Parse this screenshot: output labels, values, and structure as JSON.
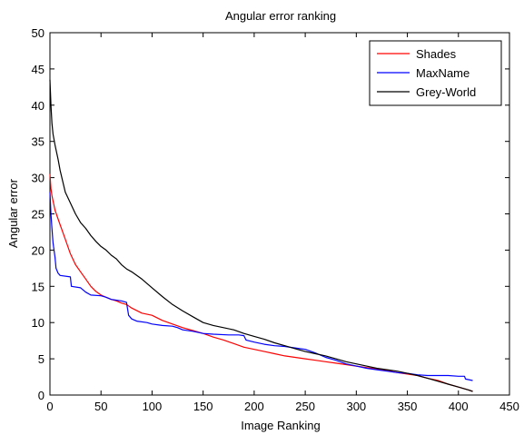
{
  "chart_data": {
    "type": "line",
    "title": "Angular error ranking",
    "xlabel": "Image Ranking",
    "ylabel": "Angular error",
    "xlim": [
      0,
      450
    ],
    "ylim": [
      0,
      50
    ],
    "xticks": [
      0,
      50,
      100,
      150,
      200,
      250,
      300,
      350,
      400,
      450
    ],
    "yticks": [
      0,
      5,
      10,
      15,
      20,
      25,
      30,
      35,
      40,
      45,
      50
    ],
    "grid": false,
    "legend": "top-right",
    "series": [
      {
        "name": "Shades",
        "color": "#ff0000",
        "points": [
          [
            0,
            30.5
          ],
          [
            1,
            28.5
          ],
          [
            2,
            27.5
          ],
          [
            5,
            25.5
          ],
          [
            10,
            23.5
          ],
          [
            15,
            21.5
          ],
          [
            20,
            19.5
          ],
          [
            25,
            18
          ],
          [
            30,
            17
          ],
          [
            35,
            16
          ],
          [
            40,
            15
          ],
          [
            45,
            14.3
          ],
          [
            50,
            13.8
          ],
          [
            55,
            13.5
          ],
          [
            60,
            13.2
          ],
          [
            65,
            13
          ],
          [
            70,
            12.7
          ],
          [
            75,
            12.5
          ],
          [
            80,
            12
          ],
          [
            90,
            11.3
          ],
          [
            100,
            11
          ],
          [
            110,
            10.3
          ],
          [
            120,
            9.8
          ],
          [
            130,
            9.3
          ],
          [
            140,
            8.9
          ],
          [
            150,
            8.5
          ],
          [
            160,
            8
          ],
          [
            170,
            7.6
          ],
          [
            180,
            7.1
          ],
          [
            190,
            6.6
          ],
          [
            200,
            6.3
          ],
          [
            210,
            6
          ],
          [
            220,
            5.7
          ],
          [
            230,
            5.4
          ],
          [
            240,
            5.2
          ],
          [
            250,
            5
          ],
          [
            260,
            4.8
          ],
          [
            270,
            4.6
          ],
          [
            280,
            4.4
          ],
          [
            290,
            4.2
          ],
          [
            300,
            4
          ],
          [
            310,
            3.8
          ],
          [
            320,
            3.6
          ],
          [
            330,
            3.4
          ],
          [
            340,
            3.1
          ],
          [
            350,
            2.9
          ],
          [
            360,
            2.7
          ],
          [
            370,
            2.3
          ],
          [
            380,
            2
          ],
          [
            390,
            1.5
          ],
          [
            400,
            1.1
          ],
          [
            405,
            0.9
          ],
          [
            410,
            0.7
          ],
          [
            414,
            0.5
          ]
        ]
      },
      {
        "name": "MaxName",
        "color": "#0000ff",
        "points": [
          [
            0,
            28
          ],
          [
            1,
            25
          ],
          [
            2,
            23
          ],
          [
            3,
            21
          ],
          [
            4,
            20
          ],
          [
            5,
            19
          ],
          [
            6,
            17.5
          ],
          [
            8,
            16.8
          ],
          [
            10,
            16.5
          ],
          [
            20,
            16.3
          ],
          [
            21,
            15
          ],
          [
            30,
            14.8
          ],
          [
            35,
            14.2
          ],
          [
            40,
            13.8
          ],
          [
            50,
            13.7
          ],
          [
            55,
            13.5
          ],
          [
            60,
            13.2
          ],
          [
            70,
            13
          ],
          [
            75,
            12.8
          ],
          [
            77,
            11
          ],
          [
            80,
            10.5
          ],
          [
            85,
            10.2
          ],
          [
            95,
            10
          ],
          [
            100,
            9.8
          ],
          [
            110,
            9.6
          ],
          [
            120,
            9.5
          ],
          [
            125,
            9.3
          ],
          [
            130,
            9
          ],
          [
            140,
            8.8
          ],
          [
            150,
            8.5
          ],
          [
            160,
            8.4
          ],
          [
            175,
            8.3
          ],
          [
            185,
            8.3
          ],
          [
            190,
            8.2
          ],
          [
            192,
            7.6
          ],
          [
            200,
            7.3
          ],
          [
            210,
            7
          ],
          [
            220,
            6.8
          ],
          [
            230,
            6.7
          ],
          [
            240,
            6.5
          ],
          [
            250,
            6.3
          ],
          [
            260,
            5.8
          ],
          [
            270,
            5.2
          ],
          [
            280,
            4.8
          ],
          [
            290,
            4.3
          ],
          [
            300,
            4
          ],
          [
            310,
            3.7
          ],
          [
            320,
            3.5
          ],
          [
            330,
            3.3
          ],
          [
            340,
            3.1
          ],
          [
            350,
            3
          ],
          [
            360,
            2.8
          ],
          [
            370,
            2.7
          ],
          [
            380,
            2.7
          ],
          [
            390,
            2.7
          ],
          [
            400,
            2.6
          ],
          [
            406,
            2.6
          ],
          [
            407,
            2.2
          ],
          [
            414,
            2
          ]
        ]
      },
      {
        "name": "Grey-World",
        "color": "#000000",
        "points": [
          [
            0,
            43.5
          ],
          [
            1,
            40
          ],
          [
            2,
            37.5
          ],
          [
            3,
            36
          ],
          [
            5,
            34.5
          ],
          [
            8,
            32.5
          ],
          [
            10,
            31
          ],
          [
            15,
            28
          ],
          [
            20,
            26.5
          ],
          [
            25,
            25
          ],
          [
            30,
            23.8
          ],
          [
            35,
            23
          ],
          [
            40,
            22
          ],
          [
            45,
            21.2
          ],
          [
            50,
            20.5
          ],
          [
            55,
            20
          ],
          [
            60,
            19.3
          ],
          [
            65,
            18.8
          ],
          [
            70,
            18
          ],
          [
            75,
            17.4
          ],
          [
            80,
            17
          ],
          [
            90,
            16
          ],
          [
            100,
            14.8
          ],
          [
            110,
            13.6
          ],
          [
            120,
            12.5
          ],
          [
            130,
            11.6
          ],
          [
            140,
            10.8
          ],
          [
            150,
            10
          ],
          [
            160,
            9.6
          ],
          [
            170,
            9.3
          ],
          [
            180,
            9
          ],
          [
            190,
            8.5
          ],
          [
            200,
            8.1
          ],
          [
            210,
            7.7
          ],
          [
            220,
            7.2
          ],
          [
            230,
            6.8
          ],
          [
            240,
            6.4
          ],
          [
            250,
            6
          ],
          [
            260,
            5.7
          ],
          [
            270,
            5.4
          ],
          [
            280,
            5
          ],
          [
            290,
            4.6
          ],
          [
            300,
            4.3
          ],
          [
            310,
            4
          ],
          [
            320,
            3.7
          ],
          [
            330,
            3.5
          ],
          [
            340,
            3.3
          ],
          [
            350,
            3
          ],
          [
            360,
            2.7
          ],
          [
            370,
            2.3
          ],
          [
            380,
            1.9
          ],
          [
            390,
            1.5
          ],
          [
            400,
            1.1
          ],
          [
            410,
            0.7
          ],
          [
            414,
            0.5
          ]
        ]
      }
    ]
  }
}
